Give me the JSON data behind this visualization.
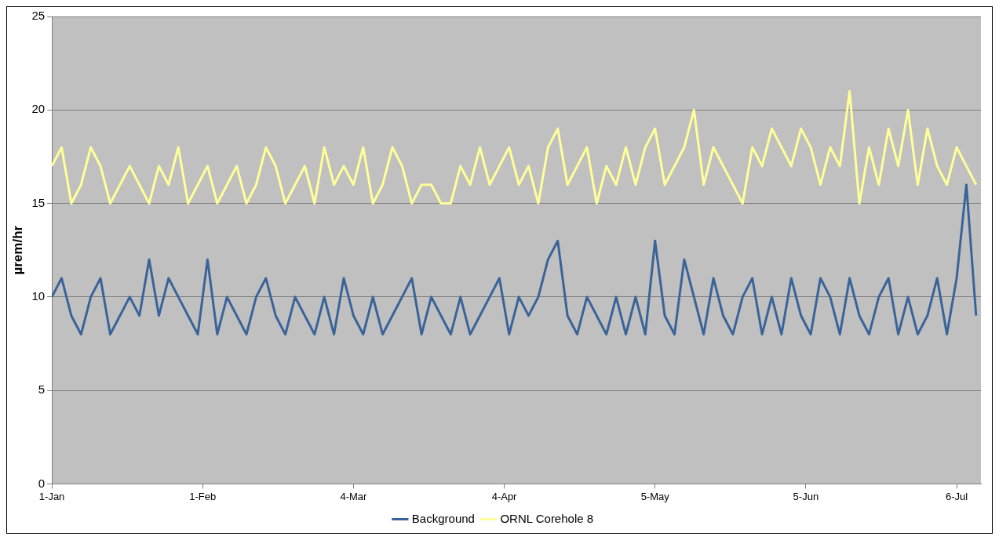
{
  "chart_data": {
    "type": "line",
    "ylabel": "µrem/hr",
    "x": [
      "--01-01",
      "--01-03",
      "--01-05",
      "--01-07",
      "--01-09",
      "--01-11",
      "--01-13",
      "--01-15",
      "--01-17",
      "--01-19",
      "--01-21",
      "--01-23",
      "--01-25",
      "--01-27",
      "--01-29",
      "--01-31",
      "--02-02",
      "--02-04",
      "--02-06",
      "--02-08",
      "--02-10",
      "--02-12",
      "--02-14",
      "--02-16",
      "--02-18",
      "--02-20",
      "--02-22",
      "--02-24",
      "--02-26",
      "--02-28",
      "--03-02",
      "--03-04",
      "--03-06",
      "--03-08",
      "--03-10",
      "--03-12",
      "--03-14",
      "--03-16",
      "--03-18",
      "--03-20",
      "--03-22",
      "--03-24",
      "--03-26",
      "--03-28",
      "--03-30",
      "--04-01",
      "--04-03",
      "--04-05",
      "--04-07",
      "--04-09",
      "--04-11",
      "--04-13",
      "--04-15",
      "--04-17",
      "--04-19",
      "--04-21",
      "--04-23",
      "--04-25",
      "--04-27",
      "--04-29",
      "--05-01",
      "--05-03",
      "--05-05",
      "--05-07",
      "--05-09",
      "--05-11",
      "--05-13",
      "--05-15",
      "--05-17",
      "--05-19",
      "--05-21",
      "--05-23",
      "--05-25",
      "--05-27",
      "--05-29",
      "--05-31",
      "--06-02",
      "--06-04",
      "--06-06",
      "--06-08",
      "--06-10",
      "--06-12",
      "--06-14",
      "--06-16",
      "--06-18",
      "--06-20",
      "--06-22",
      "--06-24",
      "--06-26",
      "--06-28",
      "--06-30",
      "--07-02",
      "--07-04",
      "--07-06",
      "--07-08",
      "--07-10"
    ],
    "series": [
      {
        "name": "Background",
        "color": "#3a6499",
        "values": [
          10,
          11,
          9,
          8,
          10,
          11,
          8,
          9,
          10,
          9,
          12,
          9,
          11,
          10,
          9,
          8,
          12,
          8,
          10,
          9,
          8,
          10,
          11,
          9,
          8,
          10,
          9,
          8,
          10,
          8,
          11,
          9,
          8,
          10,
          8,
          9,
          10,
          11,
          8,
          10,
          9,
          8,
          10,
          8,
          9,
          10,
          11,
          8,
          10,
          9,
          10,
          12,
          13,
          9,
          8,
          10,
          9,
          8,
          10,
          8,
          10,
          8,
          13,
          9,
          8,
          12,
          10,
          8,
          11,
          9,
          8,
          10,
          11,
          8,
          10,
          8,
          11,
          9,
          8,
          11,
          10,
          8,
          11,
          9,
          8,
          10,
          11,
          8,
          10,
          8,
          9,
          11,
          8,
          11,
          16,
          9
        ]
      },
      {
        "name": "ORNL Corehole 8",
        "color": "#ffff99",
        "values": [
          17,
          18,
          15,
          16,
          18,
          17,
          15,
          16,
          17,
          16,
          15,
          17,
          16,
          18,
          15,
          16,
          17,
          15,
          16,
          17,
          15,
          16,
          18,
          17,
          15,
          16,
          17,
          15,
          18,
          16,
          17,
          16,
          18,
          15,
          16,
          18,
          17,
          15,
          16,
          16,
          15,
          15,
          17,
          16,
          18,
          16,
          17,
          18,
          16,
          17,
          15,
          18,
          19,
          16,
          17,
          18,
          15,
          17,
          16,
          18,
          16,
          18,
          19,
          16,
          17,
          18,
          20,
          16,
          18,
          17,
          16,
          15,
          18,
          17,
          19,
          18,
          17,
          19,
          18,
          16,
          18,
          17,
          21,
          15,
          18,
          16,
          19,
          17,
          20,
          16,
          19,
          17,
          16,
          18,
          17,
          16
        ]
      }
    ],
    "xlim": [
      "--01-01",
      "--07-11"
    ],
    "xticks": [
      {
        "value": "--01-01",
        "label": "1-Jan"
      },
      {
        "value": "--02-01",
        "label": "1-Feb"
      },
      {
        "value": "--03-04",
        "label": "4-Mar"
      },
      {
        "value": "--04-04",
        "label": "4-Apr"
      },
      {
        "value": "--05-05",
        "label": "5-May"
      },
      {
        "value": "--06-05",
        "label": "5-Jun"
      },
      {
        "value": "--07-06",
        "label": "6-Jul"
      }
    ],
    "ylim": [
      0,
      25
    ],
    "yticks": [
      0,
      5,
      10,
      15,
      20,
      25
    ],
    "grid": "y",
    "legend": "bottom",
    "line_style": "solid",
    "marker": "none"
  }
}
